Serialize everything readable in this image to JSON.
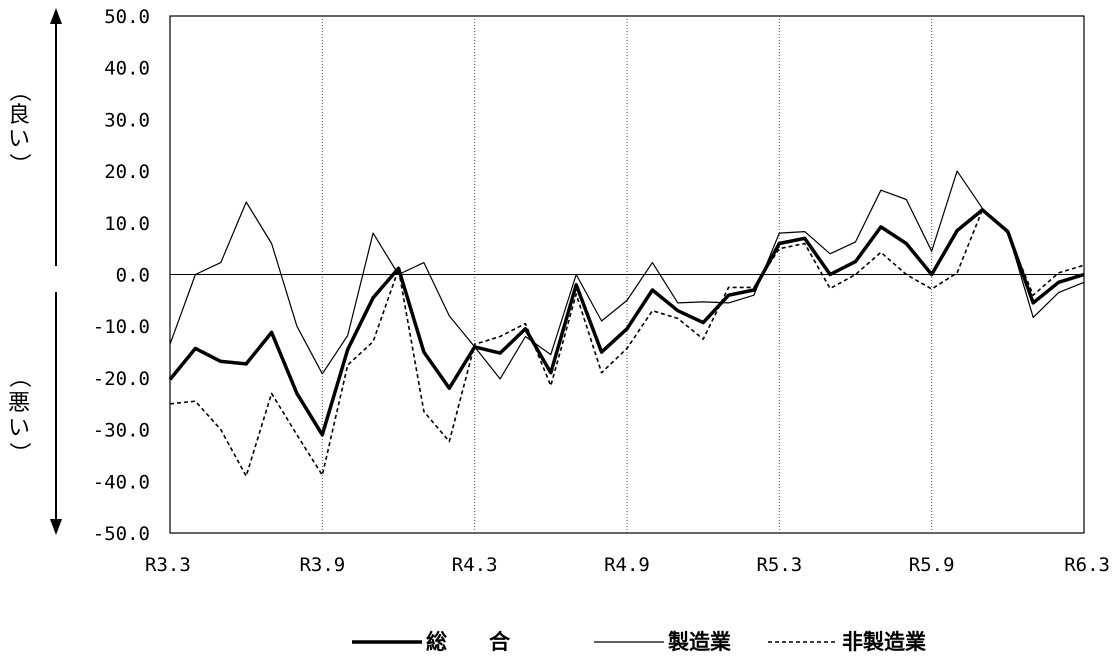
{
  "chart_data": {
    "type": "line",
    "x_ticks": [
      "R3.3",
      "R3.9",
      "R4.3",
      "R4.9",
      "R5.3",
      "R5.9",
      "R6.3"
    ],
    "y_ticks": [
      "50.0",
      "40.0",
      "30.0",
      "20.0",
      "10.0",
      "0.0",
      "-10.0",
      "-20.0",
      "-30.0",
      "-40.0",
      "-50.0"
    ],
    "ylim": [
      -50,
      50
    ],
    "grid": "vertical dotted lines at each x tick",
    "annotation_good": [
      "（",
      "良",
      "い",
      "）"
    ],
    "annotation_bad": [
      "（",
      "悪",
      "い",
      "）"
    ],
    "legend_position": "bottom",
    "series": [
      {
        "name": "総　　合",
        "style": "thick-solid",
        "values": [
          -20.3,
          -14.3,
          -16.8,
          -17.3,
          -11.2,
          -23,
          -31,
          -14.5,
          -4.5,
          1.2,
          -15,
          -22,
          -14,
          -15.2,
          -10.5,
          -19,
          -2,
          -15,
          -10.5,
          -3,
          -7,
          -9.3,
          -4,
          -3,
          6,
          7,
          0,
          2.5,
          9.2,
          6,
          0,
          8.5,
          12.5,
          8.3,
          -5.5,
          -1.5,
          0
        ]
      },
      {
        "name": "製造業",
        "style": "thin-solid",
        "values": [
          -13.5,
          0,
          2.3,
          14,
          6,
          -10,
          -19.2,
          -11.8,
          8,
          0,
          2.3,
          -8,
          -14,
          -20.2,
          -12,
          -15.5,
          0,
          -9,
          -5,
          2.3,
          -5.5,
          -5.3,
          -5.5,
          -4,
          8,
          8.3,
          4,
          6.3,
          16.3,
          14.5,
          4.5,
          20,
          12.8,
          8.3,
          -8.3,
          -3.5,
          -1.5
        ]
      },
      {
        "name": "非製造業",
        "style": "dashed",
        "values": [
          -25,
          -24.5,
          -30,
          -39,
          -23,
          -31,
          -38.8,
          -17.5,
          -13,
          1,
          -26.5,
          -32.3,
          -13.5,
          -12,
          -9.5,
          -21.5,
          -3.8,
          -19,
          -14.3,
          -7,
          -8.5,
          -12.5,
          -2.5,
          -2.5,
          5,
          6,
          -2.7,
          0,
          4.3,
          0,
          -2.8,
          0.3,
          12.5,
          8,
          -4,
          0.3,
          1.8
        ]
      }
    ]
  }
}
